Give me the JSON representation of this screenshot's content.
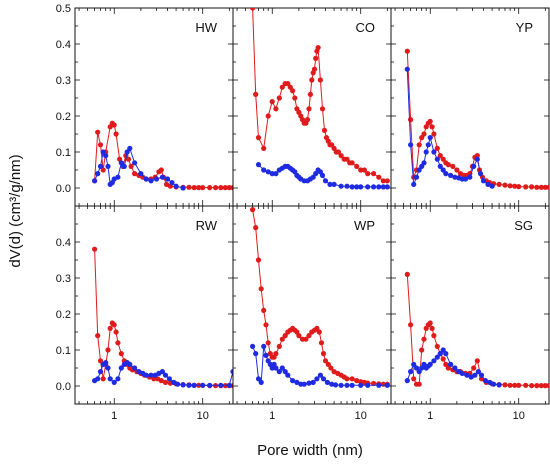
{
  "figure": {
    "ylabel": "dV(d) (cm³/g/nm)",
    "xlabel": "Pore width (nm)"
  },
  "colors": {
    "series_a": "#e01b1b",
    "series_b": "#1f2be0"
  },
  "chart_data": [
    {
      "type": "line",
      "panel": "HW",
      "xscale": "log",
      "xlim": [
        0.36,
        22
      ],
      "ylim": [
        -0.05,
        0.5
      ],
      "xticks": [
        1,
        10
      ],
      "yticks": [
        0.0,
        0.1,
        0.2,
        0.3,
        0.4,
        0.5
      ],
      "series": [
        {
          "color": "#e01b1b",
          "x": [
            0.6,
            0.65,
            0.7,
            0.75,
            0.8,
            0.9,
            0.95,
            1.0,
            1.05,
            1.15,
            1.25,
            1.35,
            1.45,
            1.55,
            1.7,
            1.9,
            2.1,
            2.3,
            2.6,
            2.9,
            3.2,
            3.4,
            3.6,
            3.9,
            4.3,
            5,
            6,
            7,
            8,
            9,
            10,
            12,
            14,
            16,
            18,
            20,
            22
          ],
          "y": [
            0.02,
            0.155,
            0.12,
            0.05,
            0.1,
            0.17,
            0.18,
            0.175,
            0.15,
            0.08,
            0.06,
            0.09,
            0.08,
            0.06,
            0.04,
            0.035,
            0.03,
            0.025,
            0.025,
            0.03,
            0.045,
            0.05,
            0.03,
            0.01,
            0.005,
            0.003,
            0.002,
            0.002,
            0.001,
            0.001,
            0.001,
            0.001,
            0.001,
            0.001,
            0.001,
            0.001,
            0.001
          ]
        },
        {
          "color": "#1f2be0",
          "x": [
            0.6,
            0.65,
            0.7,
            0.75,
            0.8,
            0.85,
            0.9,
            0.95,
            1.0,
            1.1,
            1.2,
            1.3,
            1.4,
            1.5,
            1.7,
            2,
            2.3,
            2.6,
            3,
            3.5,
            4,
            4.5,
            5,
            6
          ],
          "y": [
            0.02,
            0.04,
            0.06,
            0.1,
            0.09,
            0.06,
            0.01,
            0.015,
            0.025,
            0.03,
            0.07,
            0.06,
            0.1,
            0.11,
            0.07,
            0.04,
            0.025,
            0.02,
            0.025,
            0.03,
            0.025,
            0.015,
            0.005,
            0.0
          ]
        }
      ]
    },
    {
      "type": "line",
      "panel": "CO",
      "xscale": "log",
      "xlim": [
        0.36,
        22
      ],
      "ylim": [
        -0.05,
        0.5
      ],
      "xticks": [
        1,
        10
      ],
      "yticks": [
        0.0,
        0.1,
        0.2,
        0.3,
        0.4,
        0.5
      ],
      "series": [
        {
          "color": "#e01b1b",
          "x": [
            0.6,
            0.65,
            0.7,
            0.8,
            0.9,
            1.0,
            1.1,
            1.2,
            1.3,
            1.4,
            1.5,
            1.6,
            1.7,
            1.8,
            1.9,
            2.0,
            2.1,
            2.2,
            2.3,
            2.4,
            2.5,
            2.6,
            2.7,
            2.8,
            2.9,
            3.0,
            3.1,
            3.2,
            3.3,
            3.5,
            3.7,
            3.9,
            4.1,
            4.3,
            4.5,
            4.7,
            5.0,
            5.3,
            5.6,
            6.0,
            6.5,
            7.0,
            7.5,
            8,
            9,
            10,
            11,
            12,
            14,
            16,
            18,
            20
          ],
          "y": [
            0.5,
            0.26,
            0.14,
            0.11,
            0.2,
            0.24,
            0.22,
            0.25,
            0.28,
            0.29,
            0.29,
            0.28,
            0.27,
            0.25,
            0.22,
            0.21,
            0.2,
            0.19,
            0.18,
            0.18,
            0.19,
            0.22,
            0.26,
            0.3,
            0.32,
            0.33,
            0.36,
            0.38,
            0.39,
            0.3,
            0.22,
            0.16,
            0.14,
            0.13,
            0.12,
            0.12,
            0.11,
            0.1,
            0.1,
            0.09,
            0.08,
            0.08,
            0.07,
            0.07,
            0.06,
            0.05,
            0.05,
            0.04,
            0.04,
            0.03,
            0.02,
            0.02
          ]
        },
        {
          "color": "#1f2be0",
          "x": [
            0.7,
            0.8,
            0.9,
            1.0,
            1.1,
            1.2,
            1.3,
            1.4,
            1.5,
            1.6,
            1.7,
            1.8,
            1.9,
            2.0,
            2.1,
            2.3,
            2.5,
            2.7,
            2.9,
            3.1,
            3.3,
            3.5,
            3.7,
            4.0,
            4.5,
            5,
            6,
            7,
            8,
            9,
            10,
            12,
            14,
            16,
            18,
            20
          ],
          "y": [
            0.065,
            0.05,
            0.045,
            0.04,
            0.04,
            0.05,
            0.055,
            0.06,
            0.06,
            0.055,
            0.05,
            0.045,
            0.035,
            0.03,
            0.025,
            0.02,
            0.02,
            0.025,
            0.03,
            0.04,
            0.05,
            0.045,
            0.035,
            0.02,
            0.01,
            0.01,
            0.005,
            0.005,
            0.003,
            0.003,
            0.003,
            0.003,
            0.003,
            0.003,
            0.003,
            0.003
          ]
        }
      ]
    },
    {
      "type": "line",
      "panel": "YP",
      "xscale": "log",
      "xlim": [
        0.36,
        22
      ],
      "ylim": [
        -0.05,
        0.5
      ],
      "xticks": [
        1,
        10
      ],
      "yticks": [
        0.0,
        0.1,
        0.2,
        0.3,
        0.4,
        0.5
      ],
      "series": [
        {
          "color": "#e01b1b",
          "x": [
            0.55,
            0.6,
            0.65,
            0.7,
            0.75,
            0.8,
            0.85,
            0.9,
            0.95,
            1.0,
            1.05,
            1.1,
            1.2,
            1.3,
            1.4,
            1.5,
            1.6,
            1.8,
            2.0,
            2.2,
            2.4,
            2.6,
            2.8,
            3.0,
            3.2,
            3.4,
            3.6,
            3.9,
            4.3,
            4.7,
            5.2,
            6,
            7,
            8,
            9,
            10,
            12,
            14,
            16,
            18,
            20,
            22
          ],
          "y": [
            0.38,
            0.19,
            0.03,
            0.05,
            0.12,
            0.14,
            0.15,
            0.17,
            0.18,
            0.185,
            0.17,
            0.15,
            0.11,
            0.09,
            0.08,
            0.07,
            0.065,
            0.06,
            0.05,
            0.04,
            0.035,
            0.035,
            0.04,
            0.06,
            0.085,
            0.09,
            0.05,
            0.03,
            0.02,
            0.015,
            0.012,
            0.01,
            0.008,
            0.006,
            0.005,
            0.004,
            0.003,
            0.003,
            0.002,
            0.002,
            0.002,
            0.002
          ]
        },
        {
          "color": "#1f2be0",
          "x": [
            0.55,
            0.6,
            0.65,
            0.7,
            0.75,
            0.8,
            0.85,
            0.9,
            0.95,
            1.0,
            1.1,
            1.2,
            1.3,
            1.4,
            1.5,
            1.7,
            1.9,
            2.1,
            2.3,
            2.5,
            2.8,
            3.1,
            3.4,
            3.7,
            4.0,
            4.5,
            5
          ],
          "y": [
            0.33,
            0.12,
            0.01,
            0.03,
            0.05,
            0.06,
            0.07,
            0.1,
            0.12,
            0.14,
            0.1,
            0.08,
            0.06,
            0.05,
            0.04,
            0.035,
            0.03,
            0.028,
            0.025,
            0.025,
            0.03,
            0.06,
            0.08,
            0.04,
            0.02,
            0.01,
            0.005
          ]
        }
      ]
    },
    {
      "type": "line",
      "panel": "RW",
      "xscale": "log",
      "xlim": [
        0.36,
        22
      ],
      "ylim": [
        -0.05,
        0.5
      ],
      "xticks": [
        1,
        10
      ],
      "yticks": [
        0.0,
        0.1,
        0.2,
        0.3,
        0.4,
        0.5
      ],
      "series": [
        {
          "color": "#e01b1b",
          "x": [
            0.6,
            0.65,
            0.7,
            0.75,
            0.8,
            0.85,
            0.9,
            0.95,
            1.0,
            1.05,
            1.1,
            1.2,
            1.3,
            1.4,
            1.5,
            1.6,
            1.8,
            2.0,
            2.2,
            2.5,
            2.8,
            3.1,
            3.4,
            3.8,
            4.3,
            5,
            6,
            7,
            8,
            9,
            10,
            12,
            14,
            16,
            18,
            20,
            22
          ],
          "y": [
            0.38,
            0.14,
            0.07,
            0.02,
            0.06,
            0.1,
            0.16,
            0.175,
            0.17,
            0.15,
            0.12,
            0.09,
            0.07,
            0.06,
            0.05,
            0.045,
            0.04,
            0.035,
            0.03,
            0.025,
            0.02,
            0.02,
            0.015,
            0.01,
            0.008,
            0.006,
            0.004,
            0.003,
            0.002,
            0.002,
            0.002,
            0.001,
            0.001,
            0.001,
            0.001,
            0.001,
            0.001
          ]
        },
        {
          "color": "#1f2be0",
          "x": [
            0.6,
            0.65,
            0.7,
            0.75,
            0.8,
            0.85,
            0.9,
            1.0,
            1.1,
            1.2,
            1.3,
            1.4,
            1.5,
            1.7,
            1.9,
            2.1,
            2.3,
            2.6,
            2.9,
            3.2,
            3.5,
            3.8,
            4.2,
            4.7,
            5.2,
            6,
            7,
            8,
            10,
            12,
            16,
            20,
            22
          ],
          "y": [
            0.015,
            0.02,
            0.04,
            0.06,
            0.065,
            0.05,
            0.02,
            0.01,
            0.02,
            0.05,
            0.06,
            0.065,
            0.06,
            0.05,
            0.04,
            0.035,
            0.03,
            0.03,
            0.03,
            0.035,
            0.04,
            0.03,
            0.02,
            0.01,
            0.005,
            0.003,
            0.002,
            0.002,
            0.002,
            0.002,
            0.002,
            0.002,
            0.04
          ]
        }
      ]
    },
    {
      "type": "line",
      "panel": "WP",
      "xscale": "log",
      "xlim": [
        0.36,
        22
      ],
      "ylim": [
        -0.05,
        0.5
      ],
      "xticks": [
        1,
        10
      ],
      "yticks": [
        0.0,
        0.1,
        0.2,
        0.3,
        0.4,
        0.5
      ],
      "series": [
        {
          "color": "#e01b1b",
          "x": [
            0.6,
            0.65,
            0.7,
            0.75,
            0.8,
            0.85,
            0.9,
            0.95,
            1.0,
            1.05,
            1.1,
            1.2,
            1.3,
            1.4,
            1.5,
            1.6,
            1.7,
            1.8,
            1.9,
            2.0,
            2.2,
            2.4,
            2.6,
            2.8,
            3.0,
            3.2,
            3.4,
            3.6,
            3.8,
            4.0,
            4.3,
            4.6,
            5.0,
            5.5,
            6,
            6.5,
            7,
            8,
            9,
            10,
            11,
            12,
            14,
            16,
            18,
            20
          ],
          "y": [
            0.49,
            0.44,
            0.35,
            0.27,
            0.21,
            0.17,
            0.12,
            0.09,
            0.08,
            0.08,
            0.09,
            0.11,
            0.13,
            0.14,
            0.15,
            0.155,
            0.16,
            0.155,
            0.15,
            0.14,
            0.13,
            0.13,
            0.14,
            0.15,
            0.155,
            0.16,
            0.15,
            0.12,
            0.09,
            0.07,
            0.06,
            0.05,
            0.04,
            0.035,
            0.03,
            0.025,
            0.02,
            0.02,
            0.015,
            0.012,
            0.01,
            0.008,
            0.007,
            0.006,
            0.005,
            0.005
          ]
        },
        {
          "color": "#1f2be0",
          "x": [
            0.6,
            0.65,
            0.7,
            0.75,
            0.8,
            0.85,
            0.9,
            0.95,
            1.0,
            1.05,
            1.1,
            1.2,
            1.3,
            1.4,
            1.5,
            1.7,
            1.9,
            2.1,
            2.3,
            2.6,
            2.9,
            3.2,
            3.5,
            3.8,
            4.2,
            4.7,
            5.2,
            6,
            7,
            8,
            10,
            12,
            16,
            20
          ],
          "y": [
            0.11,
            0.09,
            0.02,
            0.01,
            0.11,
            0.085,
            0.07,
            0.06,
            0.05,
            0.06,
            0.05,
            0.04,
            0.05,
            0.04,
            0.03,
            0.015,
            0.01,
            0.005,
            0.005,
            0.008,
            0.01,
            0.02,
            0.03,
            0.02,
            0.01,
            0.005,
            0.003,
            0.002,
            0.002,
            0.002,
            0.002,
            0.002,
            0.002,
            0.002
          ]
        }
      ]
    },
    {
      "type": "line",
      "panel": "SG",
      "xscale": "log",
      "xlim": [
        0.36,
        22
      ],
      "ylim": [
        -0.05,
        0.5
      ],
      "xticks": [
        1,
        10
      ],
      "yticks": [
        0.0,
        0.1,
        0.2,
        0.3,
        0.4,
        0.5
      ],
      "series": [
        {
          "color": "#e01b1b",
          "x": [
            0.55,
            0.6,
            0.65,
            0.7,
            0.75,
            0.8,
            0.85,
            0.9,
            0.95,
            1.0,
            1.05,
            1.1,
            1.2,
            1.3,
            1.4,
            1.5,
            1.6,
            1.8,
            2.0,
            2.2,
            2.5,
            2.8,
            3.1,
            3.4,
            3.8,
            4.3,
            5,
            6,
            7,
            8,
            9,
            10,
            12,
            14,
            16,
            18,
            20,
            22
          ],
          "y": [
            0.31,
            0.17,
            0.02,
            0.005,
            0.005,
            0.1,
            0.13,
            0.16,
            0.17,
            0.175,
            0.16,
            0.14,
            0.11,
            0.09,
            0.075,
            0.06,
            0.05,
            0.045,
            0.04,
            0.04,
            0.035,
            0.035,
            0.05,
            0.07,
            0.02,
            0.01,
            0.006,
            0.004,
            0.003,
            0.002,
            0.002,
            0.002,
            0.002,
            0.001,
            0.001,
            0.001,
            0.001,
            0.001
          ]
        },
        {
          "color": "#1f2be0",
          "x": [
            0.55,
            0.6,
            0.65,
            0.7,
            0.75,
            0.8,
            0.85,
            0.9,
            0.95,
            1.0,
            1.1,
            1.2,
            1.3,
            1.4,
            1.5,
            1.7,
            1.9,
            2.1,
            2.3,
            2.6,
            2.9,
            3.2,
            3.5,
            3.8,
            4.2,
            4.7,
            5.2,
            6
          ],
          "y": [
            0.015,
            0.04,
            0.06,
            0.05,
            0.04,
            0.05,
            0.06,
            0.05,
            0.055,
            0.06,
            0.07,
            0.08,
            0.09,
            0.1,
            0.09,
            0.06,
            0.05,
            0.04,
            0.035,
            0.03,
            0.025,
            0.03,
            0.04,
            0.03,
            0.015,
            0.01,
            0.005,
            0.003
          ]
        }
      ]
    }
  ]
}
